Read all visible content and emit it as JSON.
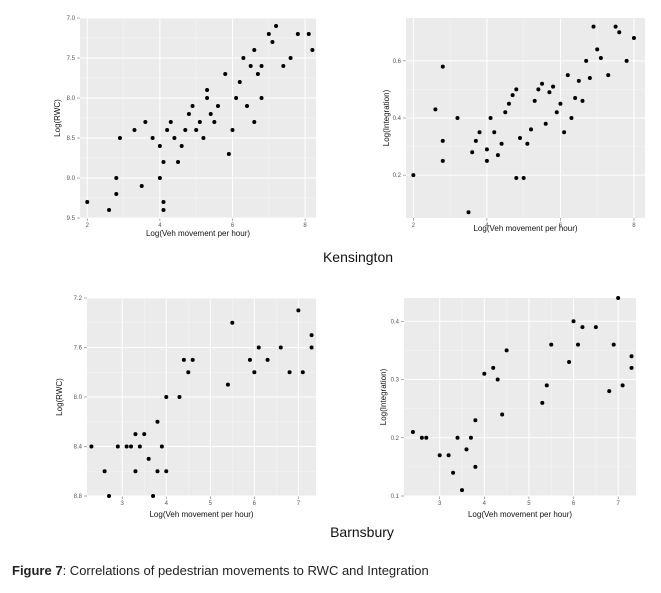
{
  "caption": {
    "label": "Figure 7",
    "text": ": Correlations of pedestrian movements to RWC and Integration"
  },
  "chart_data": [
    {
      "type": "scatter",
      "site": "Kensington",
      "xlabel": "Log(Veh movement per hour)",
      "ylabel": "Log(RWC)",
      "xlim": [
        1.8,
        8.3
      ],
      "ylim": [
        7.0,
        9.5
      ],
      "y_reversed": true,
      "grid": true,
      "xticks": [
        2,
        4,
        6,
        8
      ],
      "yticks": [
        7.0,
        7.5,
        8.0,
        8.5,
        9.0,
        9.5
      ],
      "ytick_labels": [
        "7.0",
        "7.5",
        "8.0",
        "8.5",
        "9.0",
        "9.5"
      ],
      "points": [
        [
          2.0,
          9.3
        ],
        [
          2.6,
          9.4
        ],
        [
          2.8,
          9.2
        ],
        [
          2.8,
          9.0
        ],
        [
          2.9,
          8.5
        ],
        [
          3.3,
          8.4
        ],
        [
          3.5,
          9.1
        ],
        [
          3.6,
          8.3
        ],
        [
          3.8,
          8.5
        ],
        [
          4.0,
          8.6
        ],
        [
          4.1,
          8.8
        ],
        [
          4.0,
          9.0
        ],
        [
          4.1,
          9.3
        ],
        [
          4.1,
          9.4
        ],
        [
          4.2,
          8.4
        ],
        [
          4.3,
          8.3
        ],
        [
          4.4,
          8.5
        ],
        [
          4.5,
          8.8
        ],
        [
          4.6,
          8.6
        ],
        [
          4.7,
          8.4
        ],
        [
          4.8,
          8.2
        ],
        [
          4.9,
          8.1
        ],
        [
          5.0,
          8.4
        ],
        [
          5.1,
          8.3
        ],
        [
          5.2,
          8.5
        ],
        [
          5.3,
          8.0
        ],
        [
          5.3,
          7.9
        ],
        [
          5.4,
          8.2
        ],
        [
          5.5,
          8.3
        ],
        [
          5.6,
          8.1
        ],
        [
          5.8,
          7.7
        ],
        [
          5.9,
          8.7
        ],
        [
          6.0,
          8.4
        ],
        [
          6.1,
          8.0
        ],
        [
          6.2,
          7.8
        ],
        [
          6.3,
          7.5
        ],
        [
          6.4,
          8.1
        ],
        [
          6.5,
          7.6
        ],
        [
          6.6,
          7.4
        ],
        [
          6.6,
          8.3
        ],
        [
          6.7,
          7.7
        ],
        [
          6.8,
          7.6
        ],
        [
          6.8,
          8.0
        ],
        [
          7.0,
          7.2
        ],
        [
          7.1,
          7.3
        ],
        [
          7.2,
          7.1
        ],
        [
          7.4,
          7.6
        ],
        [
          7.6,
          7.5
        ],
        [
          7.8,
          7.2
        ],
        [
          8.1,
          7.2
        ],
        [
          8.2,
          7.4
        ]
      ]
    },
    {
      "type": "scatter",
      "site": "Kensington",
      "xlabel": "Log(Veh movement per hour)",
      "ylabel": "Log(Integration)",
      "xlim": [
        1.8,
        8.3
      ],
      "ylim": [
        0.05,
        0.75
      ],
      "grid": true,
      "xticks": [
        2,
        4,
        6,
        8
      ],
      "yticks": [
        0.2,
        0.4,
        0.6
      ],
      "ytick_labels": [
        "0.2",
        "0.4",
        "0.6"
      ],
      "points": [
        [
          2.0,
          0.2
        ],
        [
          2.6,
          0.43
        ],
        [
          2.8,
          0.32
        ],
        [
          2.8,
          0.25
        ],
        [
          2.8,
          0.58
        ],
        [
          3.2,
          0.4
        ],
        [
          3.5,
          0.07
        ],
        [
          3.6,
          0.28
        ],
        [
          3.7,
          0.32
        ],
        [
          3.8,
          0.35
        ],
        [
          4.0,
          0.25
        ],
        [
          4.0,
          0.29
        ],
        [
          4.1,
          0.4
        ],
        [
          4.2,
          0.35
        ],
        [
          4.3,
          0.27
        ],
        [
          4.4,
          0.31
        ],
        [
          4.5,
          0.42
        ],
        [
          4.6,
          0.45
        ],
        [
          4.7,
          0.48
        ],
        [
          4.8,
          0.5
        ],
        [
          4.8,
          0.19
        ],
        [
          4.9,
          0.33
        ],
        [
          5.0,
          0.19
        ],
        [
          5.1,
          0.31
        ],
        [
          5.2,
          0.36
        ],
        [
          5.3,
          0.46
        ],
        [
          5.4,
          0.5
        ],
        [
          5.5,
          0.52
        ],
        [
          5.6,
          0.38
        ],
        [
          5.7,
          0.49
        ],
        [
          5.8,
          0.51
        ],
        [
          5.9,
          0.42
        ],
        [
          6.0,
          0.45
        ],
        [
          6.1,
          0.35
        ],
        [
          6.2,
          0.55
        ],
        [
          6.3,
          0.4
        ],
        [
          6.4,
          0.47
        ],
        [
          6.5,
          0.53
        ],
        [
          6.6,
          0.46
        ],
        [
          6.7,
          0.6
        ],
        [
          6.8,
          0.54
        ],
        [
          6.9,
          0.72
        ],
        [
          7.0,
          0.64
        ],
        [
          7.1,
          0.61
        ],
        [
          7.3,
          0.55
        ],
        [
          7.5,
          0.72
        ],
        [
          7.6,
          0.7
        ],
        [
          7.8,
          0.6
        ],
        [
          8.0,
          0.68
        ]
      ]
    },
    {
      "type": "scatter",
      "site": "Barnsbury",
      "xlabel": "Log(Veh movement per hour)",
      "ylabel": "Log(RWC)",
      "xlim": [
        2.2,
        7.4
      ],
      "ylim": [
        7.2,
        8.8
      ],
      "y_reversed": true,
      "grid": true,
      "xticks": [
        3,
        4,
        5,
        6,
        7
      ],
      "yticks": [
        7.2,
        7.6,
        8.0,
        8.4,
        8.8
      ],
      "ytick_labels": [
        "7.2",
        "7.6",
        "8.0",
        "8.4",
        "8.8"
      ],
      "points": [
        [
          2.3,
          8.4
        ],
        [
          2.6,
          8.6
        ],
        [
          2.7,
          8.8
        ],
        [
          2.9,
          8.4
        ],
        [
          3.1,
          8.4
        ],
        [
          3.2,
          8.4
        ],
        [
          3.3,
          8.3
        ],
        [
          3.3,
          8.6
        ],
        [
          3.4,
          8.4
        ],
        [
          3.5,
          8.3
        ],
        [
          3.6,
          8.5
        ],
        [
          3.7,
          8.8
        ],
        [
          3.8,
          8.6
        ],
        [
          3.8,
          8.2
        ],
        [
          3.9,
          8.4
        ],
        [
          4.0,
          8.6
        ],
        [
          4.0,
          8.0
        ],
        [
          4.3,
          8.0
        ],
        [
          4.4,
          7.7
        ],
        [
          4.5,
          7.8
        ],
        [
          4.6,
          7.7
        ],
        [
          5.4,
          7.9
        ],
        [
          5.5,
          7.4
        ],
        [
          5.9,
          7.7
        ],
        [
          6.0,
          7.8
        ],
        [
          6.1,
          7.6
        ],
        [
          6.3,
          7.7
        ],
        [
          6.6,
          7.6
        ],
        [
          6.8,
          7.8
        ],
        [
          7.0,
          7.3
        ],
        [
          7.1,
          7.8
        ],
        [
          7.3,
          7.6
        ],
        [
          7.3,
          7.5
        ]
      ]
    },
    {
      "type": "scatter",
      "site": "Barnsbury",
      "xlabel": "Log(Veh movement per hour)",
      "ylabel": "Log(Integration)",
      "xlim": [
        2.2,
        7.4
      ],
      "ylim": [
        0.1,
        0.44
      ],
      "grid": true,
      "xticks": [
        3,
        4,
        5,
        6,
        7
      ],
      "yticks": [
        0.1,
        0.2,
        0.3,
        0.4
      ],
      "ytick_labels": [
        "0.1",
        "0.2",
        "0.3",
        "0.4"
      ],
      "points": [
        [
          2.4,
          0.21
        ],
        [
          2.6,
          0.2
        ],
        [
          2.7,
          0.2
        ],
        [
          3.0,
          0.17
        ],
        [
          3.2,
          0.17
        ],
        [
          3.3,
          0.14
        ],
        [
          3.4,
          0.2
        ],
        [
          3.5,
          0.11
        ],
        [
          3.6,
          0.18
        ],
        [
          3.7,
          0.2
        ],
        [
          3.8,
          0.23
        ],
        [
          3.8,
          0.15
        ],
        [
          4.0,
          0.31
        ],
        [
          4.2,
          0.32
        ],
        [
          4.3,
          0.3
        ],
        [
          4.4,
          0.24
        ],
        [
          4.5,
          0.35
        ],
        [
          5.3,
          0.26
        ],
        [
          5.4,
          0.29
        ],
        [
          5.5,
          0.36
        ],
        [
          5.9,
          0.33
        ],
        [
          6.0,
          0.4
        ],
        [
          6.1,
          0.36
        ],
        [
          6.2,
          0.39
        ],
        [
          6.5,
          0.39
        ],
        [
          6.8,
          0.28
        ],
        [
          6.9,
          0.36
        ],
        [
          7.0,
          0.44
        ],
        [
          7.1,
          0.29
        ],
        [
          7.3,
          0.34
        ],
        [
          7.3,
          0.32
        ]
      ]
    }
  ],
  "site_labels": [
    "Kensington",
    "Barnsbury"
  ]
}
